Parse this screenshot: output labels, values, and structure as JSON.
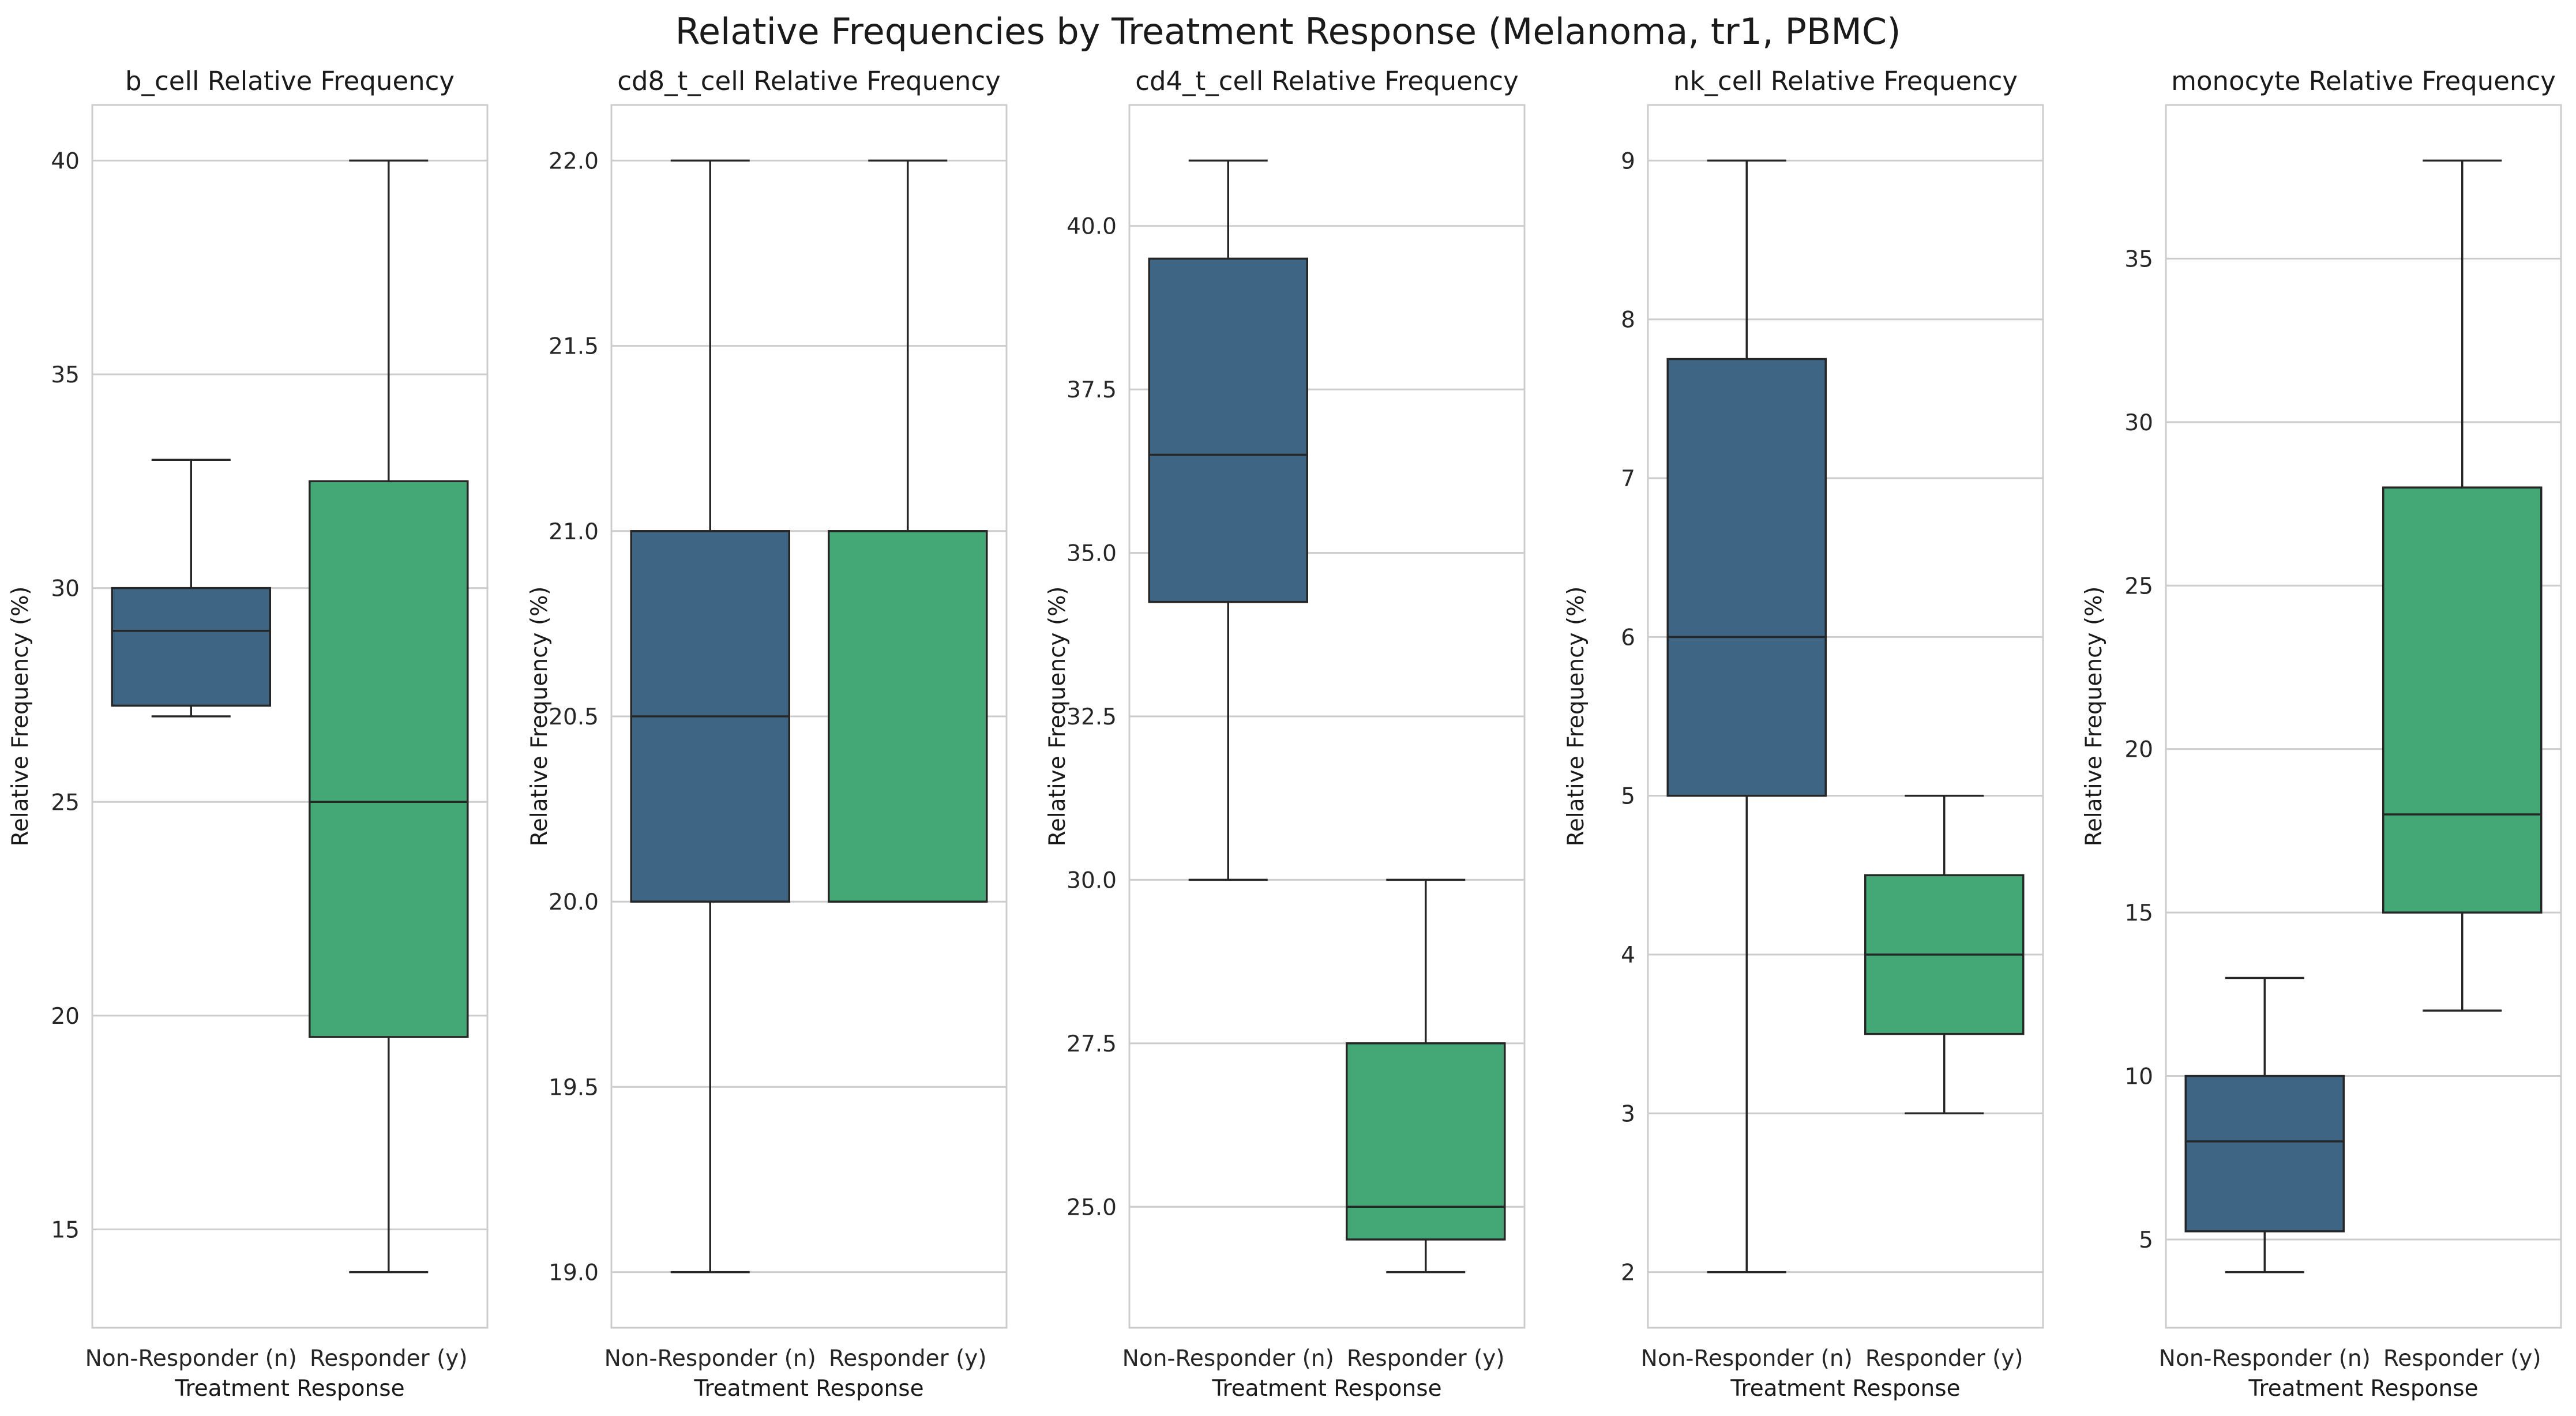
{
  "figure": {
    "title": "Relative Frequencies by Treatment Response (Melanoma, tr1, PBMC)",
    "colors": {
      "non_responder": "#3e6583",
      "responder": "#44a876",
      "grid": "#cccccc",
      "frame": "#cccccc",
      "line": "#262626"
    }
  },
  "chart_data": [
    {
      "type": "box",
      "title": "b_cell Relative Frequency",
      "xlabel": "Treatment Response",
      "ylabel": "Relative Frequency (%)",
      "categories": [
        "Non-Responder (n)",
        "Responder (y)"
      ],
      "yticks": [
        "15",
        "20",
        "25",
        "30",
        "35",
        "40"
      ],
      "ylim": [
        12.7,
        41.3
      ],
      "boxes": [
        {
          "whisker_low": 27,
          "q1": 27.25,
          "median": 29,
          "q3": 30,
          "whisker_high": 33
        },
        {
          "whisker_low": 14,
          "q1": 19.5,
          "median": 25,
          "q3": 32.5,
          "whisker_high": 40
        }
      ]
    },
    {
      "type": "box",
      "title": "cd8_t_cell Relative Frequency",
      "xlabel": "Treatment Response",
      "ylabel": "Relative Frequency (%)",
      "categories": [
        "Non-Responder (n)",
        "Responder (y)"
      ],
      "yticks": [
        "19.0",
        "19.5",
        "20.0",
        "20.5",
        "21.0",
        "21.5",
        "22.0"
      ],
      "ylim": [
        18.85,
        22.15
      ],
      "boxes": [
        {
          "whisker_low": 19,
          "q1": 20,
          "median": 20.5,
          "q3": 21,
          "whisker_high": 22
        },
        {
          "whisker_low": 20,
          "q1": 20,
          "median": 20,
          "q3": 21,
          "whisker_high": 22
        }
      ]
    },
    {
      "type": "box",
      "title": "cd4_t_cell Relative Frequency",
      "xlabel": "Treatment Response",
      "ylabel": "Relative Frequency (%)",
      "categories": [
        "Non-Responder (n)",
        "Responder (y)"
      ],
      "yticks": [
        "25.0",
        "27.5",
        "30.0",
        "32.5",
        "35.0",
        "37.5",
        "40.0"
      ],
      "ylim": [
        23.15,
        41.85
      ],
      "boxes": [
        {
          "whisker_low": 30,
          "q1": 34.25,
          "median": 36.5,
          "q3": 39.5,
          "whisker_high": 41
        },
        {
          "whisker_low": 24,
          "q1": 24.5,
          "median": 25,
          "q3": 27.5,
          "whisker_high": 30
        }
      ]
    },
    {
      "type": "box",
      "title": "nk_cell Relative Frequency",
      "xlabel": "Treatment Response",
      "ylabel": "Relative Frequency (%)",
      "categories": [
        "Non-Responder (n)",
        "Responder (y)"
      ],
      "yticks": [
        "2",
        "3",
        "4",
        "5",
        "6",
        "7",
        "8",
        "9"
      ],
      "ylim": [
        1.65,
        9.35
      ],
      "boxes": [
        {
          "whisker_low": 2,
          "q1": 5,
          "median": 6,
          "q3": 7.75,
          "whisker_high": 9
        },
        {
          "whisker_low": 3,
          "q1": 3.5,
          "median": 4,
          "q3": 4.5,
          "whisker_high": 5
        }
      ]
    },
    {
      "type": "box",
      "title": "monocyte Relative Frequency",
      "xlabel": "Treatment Response",
      "ylabel": "Relative Frequency (%)",
      "categories": [
        "Non-Responder (n)",
        "Responder (y)"
      ],
      "yticks": [
        "5",
        "10",
        "15",
        "20",
        "25",
        "30",
        "35"
      ],
      "ylim": [
        2.3,
        39.7
      ],
      "boxes": [
        {
          "whisker_low": 4,
          "q1": 5.25,
          "median": 8,
          "q3": 10,
          "whisker_high": 13
        },
        {
          "whisker_low": 12,
          "q1": 15,
          "median": 18,
          "q3": 28,
          "whisker_high": 38
        }
      ]
    }
  ]
}
